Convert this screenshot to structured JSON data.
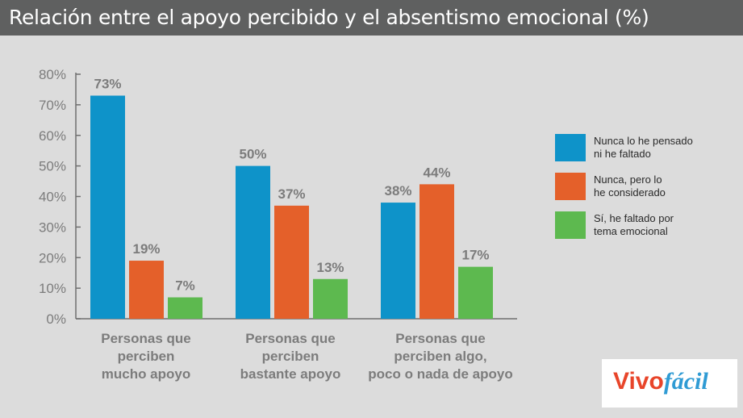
{
  "header": {
    "title": "Relación entre el apoyo percibido y el absentismo emocional (%)"
  },
  "chart_data": {
    "type": "bar",
    "title": "Relación entre el apoyo percibido y el absentismo emocional (%)",
    "xlabel": "",
    "ylabel": "",
    "ylim": [
      0,
      80
    ],
    "yticks": [
      "0%",
      "10%",
      "20%",
      "30%",
      "40%",
      "50%",
      "60%",
      "70%",
      "80%"
    ],
    "grid": false,
    "legend_position": "right",
    "categories": [
      [
        "Personas que",
        "perciben",
        "mucho apoyo"
      ],
      [
        "Personas que",
        "perciben",
        "bastante apoyo"
      ],
      [
        "Personas que",
        "perciben algo,",
        "poco o nada de apoyo"
      ]
    ],
    "series": [
      {
        "name": "Nunca lo he pensado ni he faltado",
        "legend_lines": [
          "Nunca lo he pensado",
          "ni he faltado"
        ],
        "color": "#0e93c9",
        "values": [
          73,
          50,
          38
        ],
        "labels": [
          "73%",
          "50%",
          "38%"
        ]
      },
      {
        "name": "Nunca, pero lo he considerado",
        "legend_lines": [
          "Nunca, pero lo",
          "he considerado"
        ],
        "color": "#e4602a",
        "values": [
          19,
          37,
          44
        ],
        "labels": [
          "19%",
          "37%",
          "44%"
        ]
      },
      {
        "name": "Sí, he faltado por tema emocional",
        "legend_lines": [
          "Sí, he faltado por",
          "tema emocional"
        ],
        "color": "#5db94f",
        "values": [
          7,
          13,
          17
        ],
        "labels": [
          "7%",
          "13%",
          "17%"
        ]
      }
    ]
  },
  "logo": {
    "part1": "Vivo",
    "part2": "fácil"
  },
  "colors": {
    "axis": "#6f6f6f",
    "label": "#7c7c7c",
    "title_bar": "#5f6060",
    "background": "#dcdcdc"
  }
}
